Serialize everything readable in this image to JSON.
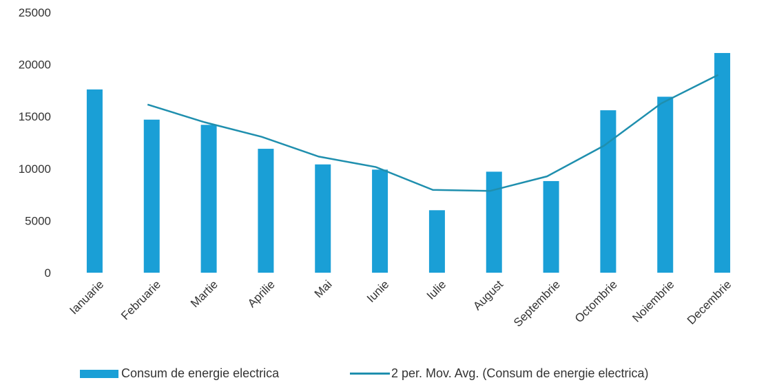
{
  "colors": {
    "bar": "#1a9fd6",
    "line": "#1f8fae",
    "grid": "#e3e3e3",
    "axis_text": "#333333"
  },
  "chart_data": {
    "type": "bar",
    "categories": [
      "Ianuarie",
      "Februarie",
      "Martie",
      "Aprilie",
      "Mai",
      "Iunie",
      "Iulie",
      "August",
      "Septembrie",
      "Octombrie",
      "Noiembrie",
      "Decembrie"
    ],
    "series": [
      {
        "name": "Consum de energie electrica",
        "type": "bar",
        "values": [
          17600,
          14700,
          14200,
          11900,
          10400,
          9900,
          6000,
          9700,
          8800,
          15600,
          16900,
          21100
        ]
      },
      {
        "name": "2 per. Mov. Avg. (Consum de energie electrica)",
        "type": "line",
        "values": [
          null,
          16150,
          14450,
          13050,
          11150,
          10150,
          7950,
          7850,
          9250,
          12200,
          16250,
          19000
        ]
      }
    ],
    "yticks": [
      "0",
      "5000",
      "10000",
      "15000",
      "20000",
      "25000"
    ],
    "ylim": [
      0,
      25000
    ],
    "grid": false,
    "legend_position": "bottom"
  }
}
